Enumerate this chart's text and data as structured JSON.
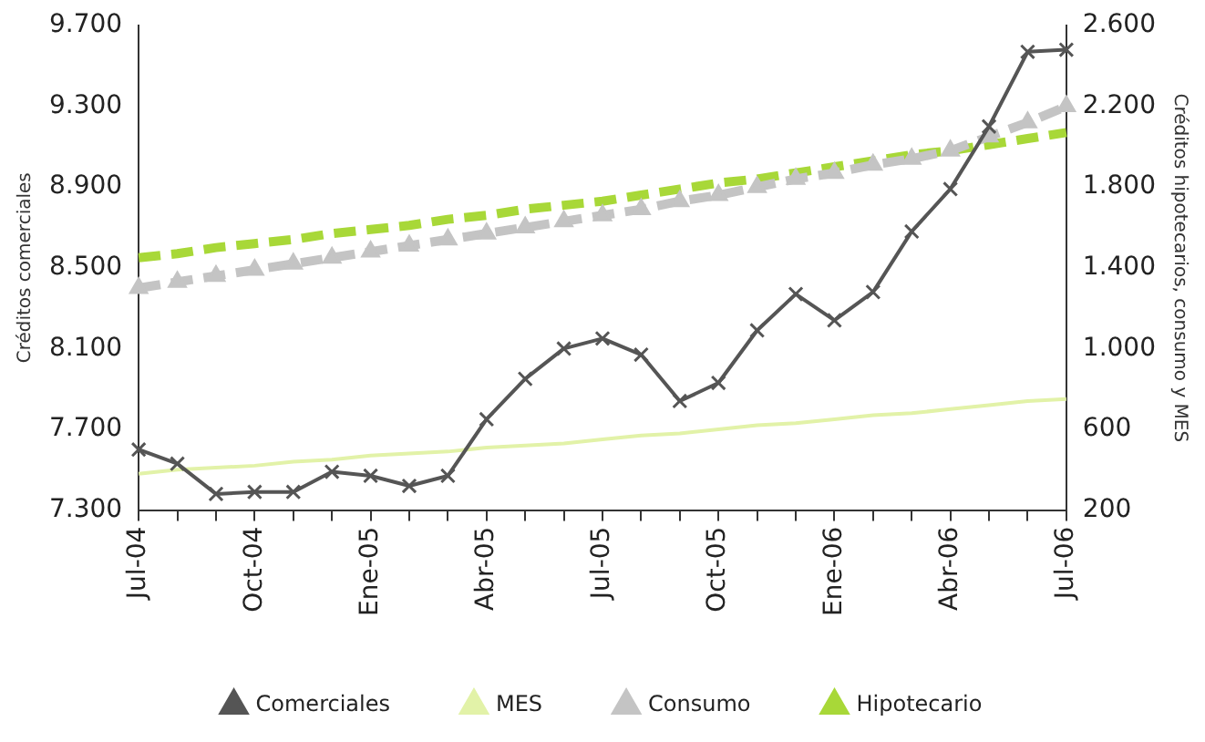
{
  "chart_data": {
    "type": "line",
    "ylabel": "Créditos comerciales",
    "y2label": "Créditos hipotecarios, consumo y MES",
    "categories": [
      "Jul-04",
      null,
      null,
      "Oct-04",
      null,
      null,
      "Ene-05",
      null,
      null,
      "Abr-05",
      null,
      null,
      "Jul-05",
      null,
      null,
      "Oct-05",
      null,
      null,
      "Ene-06",
      null,
      null,
      "Abr-06",
      null,
      null,
      "Jul-06"
    ],
    "ylim": [
      7300,
      9700
    ],
    "yticks": [
      {
        "value": 7300,
        "label": "7.300"
      },
      {
        "value": 7700,
        "label": "7.700"
      },
      {
        "value": 8100,
        "label": "8.100"
      },
      {
        "value": 8500,
        "label": "8.500"
      },
      {
        "value": 8900,
        "label": "8.900"
      },
      {
        "value": 9300,
        "label": "9.300"
      },
      {
        "value": 9700,
        "label": "9.700"
      }
    ],
    "y2lim": [
      200,
      2600
    ],
    "y2ticks": [
      200,
      600,
      {
        "value": 1000,
        "label": "1.000"
      },
      {
        "value": 1400,
        "label": "1.400"
      },
      {
        "value": 1800,
        "label": "1.800"
      },
      {
        "value": 2200,
        "label": "2.200"
      },
      {
        "value": 2600,
        "label": "2.600"
      }
    ],
    "grid": false,
    "legend": "bottom",
    "series": [
      {
        "name": "Comerciales",
        "color": "#555555",
        "marker": "cross",
        "line_style": "solid",
        "values": [
          7600,
          7530,
          7380,
          7390,
          7390,
          7490,
          7470,
          7420,
          7470,
          7750,
          7950,
          8100,
          8150,
          8070,
          7840,
          7930,
          8190,
          8370,
          8240,
          8380,
          8680,
          8890,
          9200,
          9570,
          9580
        ]
      },
      {
        "name": "MES",
        "color": "#e2f2a8",
        "marker": "none",
        "line_style": "solid",
        "axis": "y2",
        "values": [
          380,
          400,
          410,
          420,
          440,
          450,
          470,
          480,
          490,
          510,
          520,
          530,
          550,
          570,
          580,
          600,
          620,
          630,
          650,
          670,
          680,
          700,
          720,
          740,
          750
        ]
      },
      {
        "name": "Consumo",
        "color": "#c4c4c4",
        "marker": "triangle",
        "line_style": "dashed",
        "axis": "y2",
        "values": [
          1300,
          1330,
          1360,
          1390,
          1420,
          1450,
          1480,
          1510,
          1540,
          1570,
          1600,
          1630,
          1660,
          1690,
          1730,
          1760,
          1800,
          1840,
          1870,
          1910,
          1940,
          1980,
          2050,
          2120,
          2200
        ]
      },
      {
        "name": "Hipotecario",
        "color": "#a8d838",
        "marker": "none",
        "line_style": "dashed",
        "axis": "y2",
        "values": [
          1450,
          1470,
          1500,
          1520,
          1540,
          1570,
          1590,
          1610,
          1640,
          1660,
          1690,
          1710,
          1730,
          1760,
          1790,
          1820,
          1840,
          1870,
          1900,
          1930,
          1960,
          1980,
          2010,
          2040,
          2070
        ]
      }
    ]
  }
}
